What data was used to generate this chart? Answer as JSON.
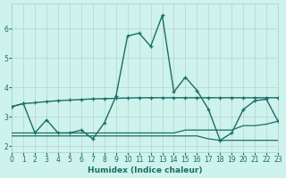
{
  "xlabel": "Humidex (Indice chaleur)",
  "bg_color": "#cef2ec",
  "grid_color": "#b0ccc8",
  "line_color": "#1a6e66",
  "xlim": [
    0,
    23
  ],
  "ylim": [
    1.8,
    6.85
  ],
  "yticks": [
    2,
    3,
    4,
    5,
    6
  ],
  "xticks": [
    0,
    1,
    2,
    3,
    4,
    5,
    6,
    7,
    8,
    9,
    10,
    11,
    12,
    13,
    14,
    15,
    16,
    17,
    18,
    19,
    20,
    21,
    22,
    23
  ],
  "curve_spike_y": [
    3.35,
    3.45,
    2.45,
    2.9,
    2.45,
    2.45,
    2.55,
    2.25,
    2.8,
    3.7,
    5.75,
    5.85,
    5.4,
    6.45,
    3.85,
    4.35,
    3.9,
    3.25,
    2.2,
    2.45,
    3.25,
    3.55,
    3.6,
    2.85
  ],
  "curve_rise_y": [
    3.35,
    3.45,
    3.48,
    3.52,
    3.55,
    3.57,
    3.59,
    3.61,
    3.62,
    3.63,
    3.64,
    3.65,
    3.65,
    3.65,
    3.65,
    3.65,
    3.65,
    3.65,
    3.65,
    3.65,
    3.65,
    3.65,
    3.65,
    3.65
  ],
  "curve_low1_y": [
    2.45,
    2.45,
    2.45,
    2.45,
    2.45,
    2.45,
    2.45,
    2.45,
    2.45,
    2.45,
    2.45,
    2.45,
    2.45,
    2.45,
    2.45,
    2.55,
    2.55,
    2.55,
    2.55,
    2.55,
    2.7,
    2.7,
    2.75,
    2.85
  ],
  "curve_low2_y": [
    2.35,
    2.35,
    2.35,
    2.35,
    2.35,
    2.35,
    2.35,
    2.35,
    2.35,
    2.35,
    2.35,
    2.35,
    2.35,
    2.35,
    2.35,
    2.35,
    2.35,
    2.25,
    2.2,
    2.2,
    2.2,
    2.2,
    2.2,
    2.2
  ]
}
